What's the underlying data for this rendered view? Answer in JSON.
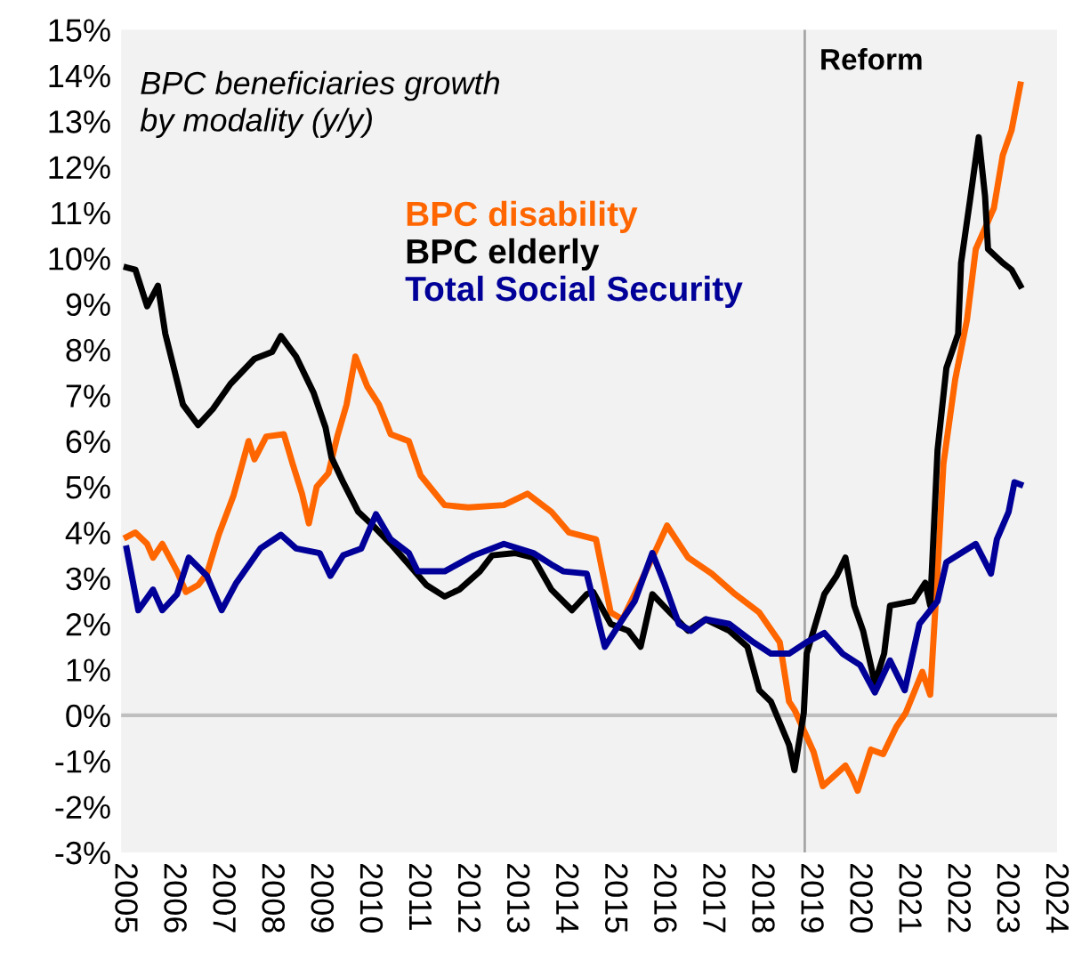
{
  "chart_data": {
    "type": "line",
    "title": "BPC beneficiaries growth\nby modality (y/y)",
    "xlim": [
      2004.95,
      2024.05
    ],
    "xticks": [
      2005,
      2006,
      2007,
      2008,
      2009,
      2010,
      2011,
      2012,
      2013,
      2014,
      2015,
      2016,
      2017,
      2018,
      2019,
      2020,
      2021,
      2022,
      2023,
      2024
    ],
    "ylim": [
      -3,
      15
    ],
    "yticks": [
      {
        "value": -3,
        "label": "-3%"
      },
      {
        "value": -2,
        "label": "-2%"
      },
      {
        "value": -1,
        "label": "-1%"
      },
      {
        "value": 0,
        "label": "0%"
      },
      {
        "value": 1,
        "label": "1%"
      },
      {
        "value": 2,
        "label": "2%"
      },
      {
        "value": 3,
        "label": "3%"
      },
      {
        "value": 4,
        "label": "4%"
      },
      {
        "value": 5,
        "label": "5%"
      },
      {
        "value": 6,
        "label": "6%"
      },
      {
        "value": 7,
        "label": "7%"
      },
      {
        "value": 8,
        "label": "8%"
      },
      {
        "value": 9,
        "label": "9%"
      },
      {
        "value": 10,
        "label": "10%"
      },
      {
        "value": 11,
        "label": "11%"
      },
      {
        "value": 12,
        "label": "12%"
      },
      {
        "value": 13,
        "label": "13%"
      },
      {
        "value": 14,
        "label": "14%"
      },
      {
        "value": 15,
        "label": "15%"
      }
    ],
    "grid": false,
    "legend": "top",
    "marker": "none",
    "line_style": "solid",
    "ref_lines": [
      {
        "axis": "y",
        "value": 0,
        "label": null,
        "color": "#bfbfbf"
      },
      {
        "axis": "x",
        "value": 2018.9,
        "label": "Reform",
        "color": "#a6a6a6"
      }
    ],
    "series": [
      {
        "name": "BPC disability",
        "color": "#ff6600",
        "x": [
          2005.06,
          2005.24,
          2005.48,
          2005.6,
          2005.79,
          2006.09,
          2006.27,
          2006.52,
          2006.7,
          2006.94,
          2007.24,
          2007.55,
          2007.67,
          2007.91,
          2008.27,
          2008.45,
          2008.64,
          2008.78,
          2008.94,
          2009.18,
          2009.36,
          2009.55,
          2009.73,
          2009.97,
          2010.21,
          2010.45,
          2010.82,
          2011.06,
          2011.55,
          2012.03,
          2012.76,
          2013.24,
          2013.73,
          2014.09,
          2014.64,
          2014.94,
          2015.18,
          2015.43,
          2015.79,
          2016.09,
          2016.52,
          2017.0,
          2017.48,
          2017.97,
          2018.39,
          2018.58,
          2018.7,
          2019.08,
          2019.27,
          2019.73,
          2019.86,
          2019.98,
          2020.25,
          2020.5,
          2020.77,
          2020.96,
          2021.3,
          2021.46,
          2021.61,
          2021.73,
          2021.97,
          2022.21,
          2022.39,
          2022.76,
          2022.94,
          2023.12,
          2023.3
        ],
        "values": [
          3.9,
          4.0,
          3.75,
          3.45,
          3.75,
          3.15,
          2.7,
          2.85,
          3.1,
          3.95,
          4.8,
          6.0,
          5.6,
          6.1,
          6.15,
          5.5,
          4.85,
          4.2,
          5.0,
          5.3,
          6.1,
          6.8,
          7.85,
          7.2,
          6.8,
          6.15,
          6.0,
          5.25,
          4.6,
          4.55,
          4.6,
          4.85,
          4.45,
          4.0,
          3.85,
          2.25,
          2.1,
          2.65,
          3.45,
          4.15,
          3.45,
          3.1,
          2.65,
          2.25,
          1.6,
          0.3,
          0.1,
          -0.8,
          -1.55,
          -1.1,
          -1.35,
          -1.65,
          -0.75,
          -0.85,
          -0.25,
          0.05,
          0.95,
          0.45,
          3.15,
          5.5,
          7.35,
          8.65,
          10.2,
          11.1,
          12.25,
          12.8,
          13.8
        ]
      },
      {
        "name": "BPC elderly",
        "color": "#000000",
        "x": [
          2005.06,
          2005.24,
          2005.48,
          2005.7,
          2005.85,
          2006.21,
          2006.52,
          2006.82,
          2007.18,
          2007.67,
          2008.03,
          2008.21,
          2008.52,
          2008.88,
          2009.12,
          2009.24,
          2009.48,
          2009.79,
          2010.09,
          2010.45,
          2010.82,
          2011.18,
          2011.55,
          2011.85,
          2012.27,
          2012.52,
          2013.0,
          2013.36,
          2013.73,
          2014.15,
          2014.45,
          2014.58,
          2014.94,
          2015.3,
          2015.55,
          2015.79,
          2016.15,
          2016.52,
          2016.88,
          2017.36,
          2017.73,
          2017.97,
          2018.21,
          2018.58,
          2018.69,
          2018.88,
          2018.94,
          2019.3,
          2019.55,
          2019.73,
          2019.91,
          2020.09,
          2020.33,
          2020.52,
          2020.64,
          2021.12,
          2021.36,
          2021.46,
          2021.61,
          2021.79,
          2022.03,
          2022.09,
          2022.27,
          2022.45,
          2022.58,
          2022.64,
          2022.94,
          2023.12,
          2023.3
        ],
        "values": [
          9.8,
          9.75,
          8.95,
          9.4,
          8.35,
          6.8,
          6.35,
          6.7,
          7.25,
          7.8,
          7.95,
          8.3,
          7.85,
          7.05,
          6.3,
          5.65,
          5.1,
          4.45,
          4.15,
          3.75,
          3.3,
          2.85,
          2.6,
          2.75,
          3.15,
          3.5,
          3.55,
          3.45,
          2.75,
          2.3,
          2.65,
          2.7,
          2.0,
          1.85,
          1.5,
          2.65,
          2.25,
          1.85,
          2.1,
          1.85,
          1.5,
          0.55,
          0.3,
          -0.65,
          -1.2,
          0.05,
          1.35,
          2.65,
          3.05,
          3.45,
          2.4,
          1.85,
          0.7,
          1.35,
          2.4,
          2.5,
          2.9,
          2.4,
          5.8,
          7.6,
          8.35,
          9.9,
          11.25,
          12.65,
          11.35,
          10.2,
          9.9,
          9.75,
          9.4
        ]
      },
      {
        "name": "Total Social Security",
        "color": "#000099",
        "x": [
          2005.06,
          2005.3,
          2005.6,
          2005.79,
          2006.09,
          2006.33,
          2006.7,
          2007.0,
          2007.3,
          2007.79,
          2008.21,
          2008.52,
          2009.0,
          2009.22,
          2009.48,
          2009.85,
          2010.15,
          2010.45,
          2010.82,
          2011.0,
          2011.55,
          2012.15,
          2012.76,
          2013.36,
          2013.73,
          2013.97,
          2014.45,
          2014.82,
          2015.18,
          2015.43,
          2015.79,
          2016.03,
          2016.33,
          2016.58,
          2016.88,
          2017.36,
          2017.85,
          2018.21,
          2018.58,
          2018.94,
          2019.3,
          2019.67,
          2020.03,
          2020.33,
          2020.64,
          2020.94,
          2021.24,
          2021.61,
          2021.79,
          2022.09,
          2022.39,
          2022.7,
          2022.82,
          2023.06,
          2023.18,
          2023.3
        ],
        "values": [
          3.65,
          2.3,
          2.75,
          2.3,
          2.65,
          3.45,
          3.05,
          2.3,
          2.9,
          3.65,
          3.95,
          3.65,
          3.55,
          3.05,
          3.5,
          3.65,
          4.4,
          3.85,
          3.55,
          3.15,
          3.15,
          3.5,
          3.75,
          3.55,
          3.3,
          3.15,
          3.1,
          1.5,
          2.1,
          2.5,
          3.55,
          2.9,
          2.0,
          1.85,
          2.1,
          2.0,
          1.6,
          1.35,
          1.35,
          1.6,
          1.8,
          1.35,
          1.1,
          0.5,
          1.2,
          0.55,
          2.0,
          2.5,
          3.35,
          3.55,
          3.75,
          3.1,
          3.85,
          4.45,
          5.1,
          5.05
        ]
      }
    ]
  }
}
